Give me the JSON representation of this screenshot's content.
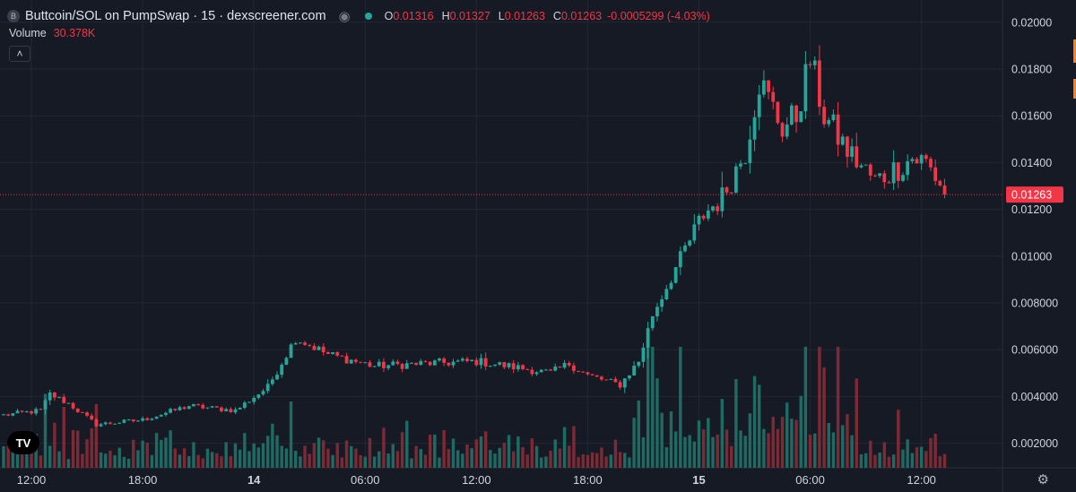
{
  "header": {
    "badge": "B",
    "title": "Buttcoin/SOL on PumpSwap · 15 · dexscreener.com",
    "ohlc": [
      {
        "k": "O",
        "v": "0.01316"
      },
      {
        "k": "H",
        "v": "0.01327"
      },
      {
        "k": "L",
        "v": "0.01263"
      },
      {
        "k": "C",
        "v": "0.01263"
      }
    ],
    "change": "-0.0005299 (-4.03%)"
  },
  "volume": {
    "label": "Volume",
    "value": "30.378K"
  },
  "colors": {
    "up": "#26a69a",
    "down": "#f23645",
    "up_vol": "#1f6b64",
    "down_vol": "#7e2a35",
    "grid": "#232733",
    "background": "#161a25"
  },
  "icons": {
    "visibility": "eye-icon",
    "collapse": "chevron-up-icon",
    "logo": "tradingview-logo-icon",
    "settings": "gear-icon"
  },
  "chart_data": {
    "type": "candlestick",
    "interval": "15",
    "y_scale": "linear",
    "ylim": [
      0.00095,
      0.02095
    ],
    "y_ticks": [
      0.002,
      0.004,
      0.006,
      0.008,
      0.01,
      0.012,
      0.014,
      0.016,
      0.018,
      0.02
    ],
    "y_tick_labels": [
      "0.002000",
      "0.004000",
      "0.006000",
      "0.008000",
      "0.01000",
      "0.01200",
      "0.01400",
      "0.01600",
      "0.01800",
      "0.02000"
    ],
    "x_tick_labels": [
      "12:00",
      "18:00",
      "14",
      "06:00",
      "12:00",
      "18:00",
      "15",
      "06:00",
      "12:00"
    ],
    "x_tick_bold": [
      false,
      false,
      true,
      false,
      false,
      false,
      true,
      false,
      false
    ],
    "x_tick_bar_index": [
      6,
      30,
      54,
      78,
      102,
      126,
      150,
      174,
      198
    ],
    "bars_total_span": 215,
    "last_price": 0.01263,
    "last_price_label": "0.01263",
    "vol_max": 95000,
    "anchors": [
      [
        0,
        0.0032
      ],
      [
        8,
        0.0034
      ],
      [
        10,
        0.0041
      ],
      [
        14,
        0.0037
      ],
      [
        20,
        0.0028
      ],
      [
        30,
        0.003
      ],
      [
        40,
        0.0036
      ],
      [
        50,
        0.0034
      ],
      [
        57,
        0.0044
      ],
      [
        63,
        0.0065
      ],
      [
        70,
        0.0058
      ],
      [
        80,
        0.0053
      ],
      [
        90,
        0.0054
      ],
      [
        102,
        0.0055
      ],
      [
        112,
        0.0052
      ],
      [
        118,
        0.005
      ],
      [
        122,
        0.0054
      ],
      [
        126,
        0.0049
      ],
      [
        133,
        0.0045
      ],
      [
        137,
        0.0055
      ],
      [
        140,
        0.0075
      ],
      [
        145,
        0.0095
      ],
      [
        151,
        0.0118
      ],
      [
        155,
        0.0125
      ],
      [
        160,
        0.0145
      ],
      [
        163,
        0.0175
      ],
      [
        168,
        0.0155
      ],
      [
        171,
        0.016
      ],
      [
        174,
        0.0184
      ],
      [
        177,
        0.016
      ],
      [
        182,
        0.0145
      ],
      [
        188,
        0.0132
      ],
      [
        193,
        0.0138
      ],
      [
        196,
        0.0142
      ],
      [
        199,
        0.014
      ],
      [
        201,
        0.0134
      ],
      [
        203,
        0.0128
      ]
    ]
  }
}
